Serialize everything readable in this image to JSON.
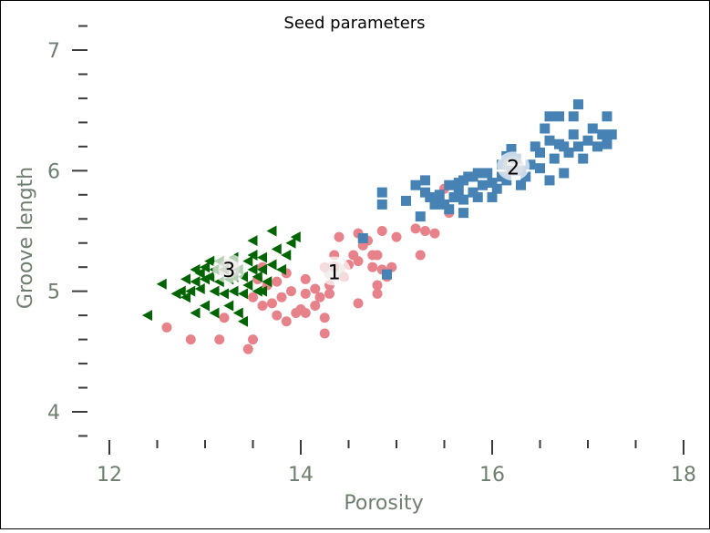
{
  "chart_data": {
    "type": "scatter",
    "title": "Seed parameters",
    "xlabel": "Porosity",
    "ylabel": "Groove length",
    "xlim": [
      11.7,
      18.05
    ],
    "ylim": [
      3.75,
      7.05
    ],
    "xticks": [
      12,
      14,
      16,
      18
    ],
    "yticks": [
      4,
      5,
      6,
      7
    ],
    "grid": false,
    "series": [
      {
        "color": "#e8828a",
        "marker": "circle",
        "points": [
          [
            12.6,
            4.7
          ],
          [
            12.85,
            4.6
          ],
          [
            13.15,
            4.6
          ],
          [
            13.45,
            4.52
          ],
          [
            13.5,
            4.6
          ],
          [
            13.2,
            4.78
          ],
          [
            13.6,
            4.88
          ],
          [
            13.7,
            4.9
          ],
          [
            13.75,
            4.8
          ],
          [
            13.85,
            4.75
          ],
          [
            13.95,
            4.82
          ],
          [
            14.05,
            4.82
          ],
          [
            14.15,
            4.88
          ],
          [
            14.25,
            4.65
          ],
          [
            14.25,
            4.78
          ],
          [
            14.0,
            4.85
          ],
          [
            13.9,
            5.0
          ],
          [
            13.8,
            4.95
          ],
          [
            14.05,
            4.98
          ],
          [
            14.15,
            5.02
          ],
          [
            14.2,
            4.95
          ],
          [
            14.3,
            5.05
          ],
          [
            14.05,
            5.1
          ],
          [
            14.25,
            5.2
          ],
          [
            14.35,
            5.3
          ],
          [
            14.45,
            5.12
          ],
          [
            14.5,
            5.22
          ],
          [
            14.55,
            5.3
          ],
          [
            14.6,
            5.25
          ],
          [
            14.65,
            5.38
          ],
          [
            14.6,
            5.48
          ],
          [
            14.7,
            5.42
          ],
          [
            14.75,
            5.2
          ],
          [
            14.8,
            5.05
          ],
          [
            14.85,
            5.18
          ],
          [
            14.95,
            5.2
          ],
          [
            14.8,
            4.98
          ],
          [
            14.9,
            5.12
          ],
          [
            14.8,
            5.3
          ],
          [
            14.85,
            5.5
          ],
          [
            15.0,
            5.45
          ],
          [
            15.2,
            5.52
          ],
          [
            15.3,
            5.5
          ],
          [
            15.4,
            5.48
          ],
          [
            15.25,
            5.3
          ],
          [
            15.5,
            5.85
          ],
          [
            15.55,
            5.65
          ],
          [
            13.55,
            5.1
          ],
          [
            13.65,
            5.05
          ],
          [
            13.75,
            5.08
          ],
          [
            13.85,
            5.15
          ],
          [
            13.5,
            4.95
          ],
          [
            13.6,
            5.2
          ],
          [
            14.35,
            5.2
          ],
          [
            14.6,
            4.9
          ],
          [
            14.75,
            5.3
          ],
          [
            14.4,
            5.45
          ],
          [
            14.3,
            4.98
          ]
        ]
      },
      {
        "color": "#4682b4",
        "marker": "square",
        "points": [
          [
            14.65,
            5.44
          ],
          [
            14.9,
            5.14
          ],
          [
            14.85,
            5.82
          ],
          [
            14.85,
            5.72
          ],
          [
            15.1,
            5.75
          ],
          [
            15.25,
            5.62
          ],
          [
            15.2,
            5.88
          ],
          [
            15.3,
            5.82
          ],
          [
            15.3,
            5.92
          ],
          [
            15.35,
            5.78
          ],
          [
            15.4,
            5.72
          ],
          [
            15.45,
            5.8
          ],
          [
            15.5,
            5.72
          ],
          [
            15.55,
            5.68
          ],
          [
            15.55,
            5.88
          ],
          [
            15.6,
            5.78
          ],
          [
            15.65,
            5.9
          ],
          [
            15.65,
            5.82
          ],
          [
            15.7,
            5.92
          ],
          [
            15.7,
            5.76
          ],
          [
            15.75,
            5.95
          ],
          [
            15.8,
            5.82
          ],
          [
            15.85,
            5.98
          ],
          [
            15.85,
            5.78
          ],
          [
            15.9,
            5.88
          ],
          [
            15.95,
            5.98
          ],
          [
            16.0,
            5.9
          ],
          [
            16.0,
            5.78
          ],
          [
            16.05,
            5.85
          ],
          [
            16.1,
            5.95
          ],
          [
            16.1,
            6.05
          ],
          [
            16.15,
            5.92
          ],
          [
            16.15,
            6.12
          ],
          [
            16.2,
            6.0
          ],
          [
            16.25,
            6.1
          ],
          [
            16.3,
            5.88
          ],
          [
            16.3,
            6.0
          ],
          [
            16.35,
            5.95
          ],
          [
            16.4,
            6.05
          ],
          [
            16.45,
            6.2
          ],
          [
            16.5,
            6.15
          ],
          [
            16.5,
            6.02
          ],
          [
            16.55,
            6.35
          ],
          [
            16.6,
            6.45
          ],
          [
            16.6,
            6.25
          ],
          [
            16.65,
            6.1
          ],
          [
            16.7,
            6.45
          ],
          [
            16.7,
            6.22
          ],
          [
            16.75,
            5.98
          ],
          [
            16.75,
            6.2
          ],
          [
            16.8,
            6.15
          ],
          [
            16.85,
            6.3
          ],
          [
            16.85,
            6.45
          ],
          [
            16.9,
            6.55
          ],
          [
            16.9,
            6.2
          ],
          [
            16.95,
            6.1
          ],
          [
            17.0,
            6.25
          ],
          [
            17.05,
            6.35
          ],
          [
            17.1,
            6.2
          ],
          [
            17.15,
            6.3
          ],
          [
            17.2,
            6.45
          ],
          [
            17.25,
            6.3
          ],
          [
            17.2,
            6.22
          ],
          [
            16.2,
            6.18
          ],
          [
            16.6,
            5.92
          ],
          [
            15.8,
            5.95
          ],
          [
            15.7,
            5.65
          ]
        ]
      },
      {
        "color": "#006400",
        "marker": "triangle-left",
        "points": [
          [
            12.4,
            4.8
          ],
          [
            12.55,
            5.06
          ],
          [
            12.7,
            4.98
          ],
          [
            12.75,
            5.0
          ],
          [
            12.8,
            5.1
          ],
          [
            12.8,
            4.95
          ],
          [
            12.85,
            5.0
          ],
          [
            12.9,
            5.18
          ],
          [
            12.9,
            5.08
          ],
          [
            12.95,
            5.15
          ],
          [
            12.95,
            5.02
          ],
          [
            13.0,
            5.2
          ],
          [
            13.0,
            5.1
          ],
          [
            13.0,
            4.88
          ],
          [
            13.05,
            5.25
          ],
          [
            13.05,
            5.12
          ],
          [
            13.1,
            5.18
          ],
          [
            13.1,
            5.0
          ],
          [
            13.1,
            4.82
          ],
          [
            13.15,
            5.25
          ],
          [
            13.15,
            5.08
          ],
          [
            13.2,
            5.18
          ],
          [
            13.2,
            4.98
          ],
          [
            13.25,
            5.1
          ],
          [
            13.3,
            5.28
          ],
          [
            13.3,
            5.0
          ],
          [
            13.35,
            5.18
          ],
          [
            13.35,
            4.82
          ],
          [
            13.4,
            5.12
          ],
          [
            13.4,
            4.98
          ],
          [
            13.45,
            5.25
          ],
          [
            13.45,
            5.05
          ],
          [
            13.5,
            5.18
          ],
          [
            13.5,
            5.3
          ],
          [
            13.55,
            5.0
          ],
          [
            13.55,
            5.12
          ],
          [
            13.6,
            5.28
          ],
          [
            13.6,
            5.18
          ],
          [
            13.65,
            5.08
          ],
          [
            13.7,
            5.22
          ],
          [
            13.75,
            5.35
          ],
          [
            13.8,
            5.18
          ],
          [
            13.85,
            5.3
          ],
          [
            13.9,
            5.4
          ],
          [
            13.95,
            5.45
          ],
          [
            13.7,
            5.5
          ],
          [
            13.6,
            5.0
          ],
          [
            12.9,
            4.82
          ],
          [
            13.25,
            4.88
          ],
          [
            13.4,
            4.75
          ],
          [
            13.5,
            5.42
          ],
          [
            13.3,
            5.12
          ]
        ]
      }
    ],
    "annotations": [
      {
        "text": "1",
        "x": 14.35,
        "y": 5.16
      },
      {
        "text": "2",
        "x": 16.22,
        "y": 6.03
      },
      {
        "text": "3",
        "x": 13.25,
        "y": 5.18
      }
    ]
  }
}
